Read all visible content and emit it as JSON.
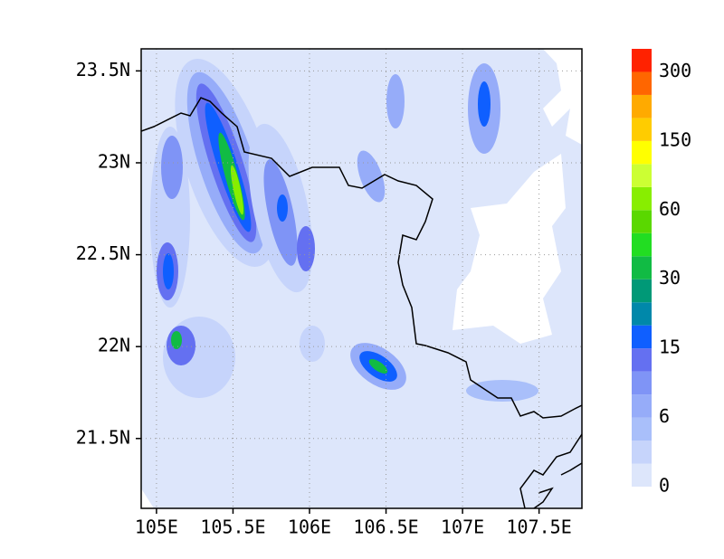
{
  "map": {
    "xlim": [
      104.9,
      107.78
    ],
    "ylim": [
      21.12,
      23.62
    ],
    "xticks": [
      {
        "value": 105,
        "label": "105E"
      },
      {
        "value": 105.5,
        "label": "105.5E"
      },
      {
        "value": 106,
        "label": "106E"
      },
      {
        "value": 106.5,
        "label": "106.5E"
      },
      {
        "value": 107,
        "label": "107E"
      },
      {
        "value": 107.5,
        "label": "107.5E"
      }
    ],
    "yticks": [
      {
        "value": 21.5,
        "label": "21.5N"
      },
      {
        "value": 22,
        "label": "22N"
      },
      {
        "value": 22.5,
        "label": "22.5N"
      },
      {
        "value": 23,
        "label": "23N"
      },
      {
        "value": 23.5,
        "label": "23.5N"
      }
    ],
    "grid": true,
    "colorbar": {
      "colors": [
        "#dde6fb",
        "#c6d4fb",
        "#a9bffa",
        "#96acf9",
        "#7f94f6",
        "#6470f1",
        "#0f5fff",
        "#0088aa",
        "#009977",
        "#11bb44",
        "#22dd22",
        "#5ad800",
        "#88ee00",
        "#ccff33",
        "#ffff00",
        "#ffcc00",
        "#ffaa00",
        "#ff6600",
        "#ff2200"
      ],
      "labels": [
        0,
        6,
        15,
        30,
        60,
        150,
        300
      ]
    }
  }
}
